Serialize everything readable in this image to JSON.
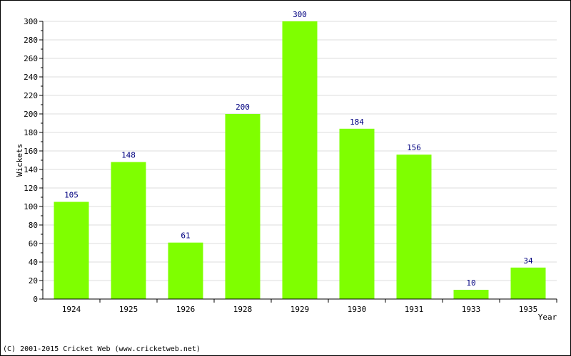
{
  "chart_data": {
    "type": "bar",
    "title": "",
    "xlabel": "Year",
    "ylabel": "Wickets",
    "categories": [
      "1924",
      "1925",
      "1926",
      "1928",
      "1929",
      "1930",
      "1931",
      "1933",
      "1935"
    ],
    "values": [
      105,
      148,
      61,
      200,
      300,
      184,
      156,
      10,
      34
    ],
    "data_labels": [
      "105",
      "148",
      "61",
      "200",
      "300",
      "184",
      "156",
      "10",
      "34"
    ],
    "yticks": [
      "0",
      "20",
      "40",
      "60",
      "80",
      "100",
      "120",
      "140",
      "160",
      "180",
      "200",
      "220",
      "240",
      "260",
      "280",
      "300"
    ],
    "ylim": [
      0,
      300
    ],
    "grid": true,
    "legend": "none",
    "colors": {
      "bar": "#7fff00",
      "label": "#000080",
      "grid": "#dddddd",
      "axis": "#000000"
    }
  },
  "footer": {
    "copyright": "(C) 2001-2015 Cricket Web (www.cricketweb.net)"
  }
}
